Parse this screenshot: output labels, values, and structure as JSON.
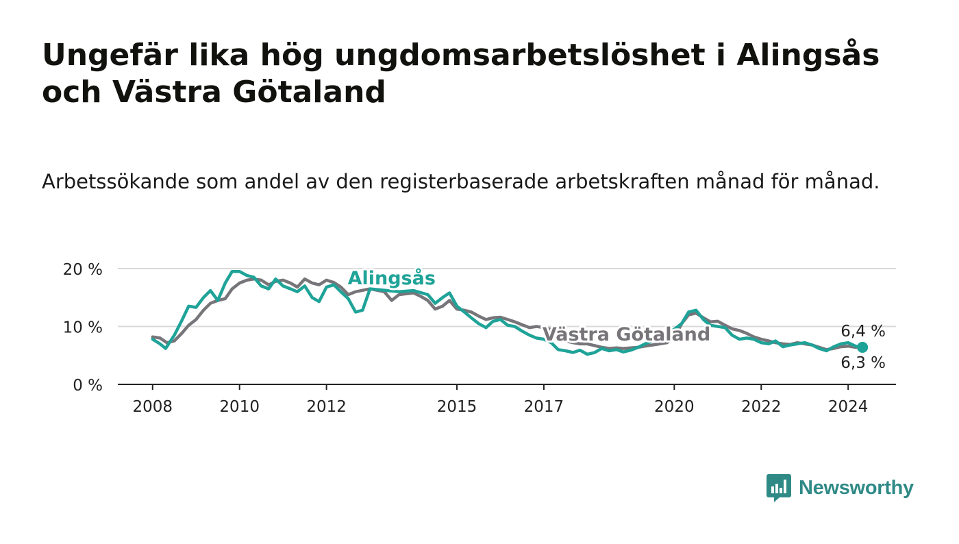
{
  "title": "Ungefär lika hög ungdomsarbetslöshet i Alingsås och Västra Götaland",
  "subtitle": "Arbetssökande som andel av den registerbaserade arbetskraften månad för månad.",
  "brand": {
    "name": "Newsworthy",
    "color": "#2f8a86"
  },
  "colors": {
    "alingsas": "#1fa398",
    "vastra": "#77757a",
    "grid": "#d9d9d9",
    "axis": "#222222"
  },
  "chart_data": {
    "type": "line",
    "title": "Ungefär lika hög ungdomsarbetslöshet i Alingsås och Västra Götaland",
    "xlabel": "",
    "ylabel": "",
    "ylim": [
      0,
      20
    ],
    "xlim": [
      2007.2,
      2025.1
    ],
    "yticks": [
      {
        "value": 0,
        "label": "0 %"
      },
      {
        "value": 10,
        "label": "10 %"
      },
      {
        "value": 20,
        "label": "20 %"
      }
    ],
    "xticks": [
      {
        "value": 2008,
        "label": "2008"
      },
      {
        "value": 2010,
        "label": "2010"
      },
      {
        "value": 2012,
        "label": "2012"
      },
      {
        "value": 2015,
        "label": "2015"
      },
      {
        "value": 2017,
        "label": "2017"
      },
      {
        "value": 2020,
        "label": "2020"
      },
      {
        "value": 2022,
        "label": "2022"
      },
      {
        "value": 2024,
        "label": "2024"
      }
    ],
    "grid": true,
    "series": [
      {
        "name": "Västra Götaland",
        "label": "Västra Götaland",
        "last_value_label": "6,3 %",
        "points": [
          [
            2008.0,
            8.2
          ],
          [
            2008.17,
            8.0
          ],
          [
            2008.33,
            7.2
          ],
          [
            2008.5,
            7.5
          ],
          [
            2008.67,
            8.8
          ],
          [
            2008.83,
            10.2
          ],
          [
            2009.0,
            11.2
          ],
          [
            2009.17,
            12.8
          ],
          [
            2009.33,
            14.0
          ],
          [
            2009.5,
            14.5
          ],
          [
            2009.67,
            14.8
          ],
          [
            2009.83,
            16.5
          ],
          [
            2010.0,
            17.5
          ],
          [
            2010.17,
            18.0
          ],
          [
            2010.33,
            18.2
          ],
          [
            2010.5,
            18.0
          ],
          [
            2010.67,
            17.2
          ],
          [
            2010.83,
            17.8
          ],
          [
            2011.0,
            18.0
          ],
          [
            2011.17,
            17.5
          ],
          [
            2011.33,
            16.8
          ],
          [
            2011.5,
            18.2
          ],
          [
            2011.67,
            17.5
          ],
          [
            2011.83,
            17.2
          ],
          [
            2012.0,
            18.0
          ],
          [
            2012.17,
            17.6
          ],
          [
            2012.33,
            16.8
          ],
          [
            2012.5,
            15.5
          ],
          [
            2012.67,
            16.0
          ],
          [
            2013.0,
            16.5
          ],
          [
            2013.33,
            16.0
          ],
          [
            2013.5,
            14.5
          ],
          [
            2013.67,
            15.5
          ],
          [
            2014.0,
            15.8
          ],
          [
            2014.17,
            15.2
          ],
          [
            2014.33,
            14.5
          ],
          [
            2014.5,
            13.0
          ],
          [
            2014.67,
            13.5
          ],
          [
            2014.83,
            14.5
          ],
          [
            2015.0,
            13.0
          ],
          [
            2015.17,
            12.8
          ],
          [
            2015.33,
            12.5
          ],
          [
            2015.5,
            11.8
          ],
          [
            2015.67,
            11.2
          ],
          [
            2015.83,
            11.5
          ],
          [
            2016.0,
            11.6
          ],
          [
            2016.17,
            11.2
          ],
          [
            2016.33,
            10.8
          ],
          [
            2016.5,
            10.3
          ],
          [
            2016.67,
            9.8
          ],
          [
            2016.83,
            10.0
          ],
          [
            2017.0,
            9.8
          ],
          [
            2017.17,
            9.5
          ],
          [
            2017.33,
            8.2
          ],
          [
            2017.5,
            7.5
          ],
          [
            2017.67,
            7.2
          ],
          [
            2017.83,
            7.0
          ],
          [
            2018.0,
            7.0
          ],
          [
            2018.17,
            6.7
          ],
          [
            2018.33,
            6.4
          ],
          [
            2018.5,
            6.2
          ],
          [
            2018.67,
            6.3
          ],
          [
            2018.83,
            6.2
          ],
          [
            2019.0,
            6.3
          ],
          [
            2019.17,
            6.4
          ],
          [
            2019.33,
            6.6
          ],
          [
            2019.5,
            6.8
          ],
          [
            2019.67,
            7.0
          ],
          [
            2019.83,
            7.2
          ],
          [
            2020.0,
            8.0
          ],
          [
            2020.17,
            10.5
          ],
          [
            2020.33,
            12.0
          ],
          [
            2020.5,
            12.3
          ],
          [
            2020.67,
            11.5
          ],
          [
            2020.83,
            10.8
          ],
          [
            2021.0,
            10.9
          ],
          [
            2021.17,
            10.2
          ],
          [
            2021.33,
            9.6
          ],
          [
            2021.5,
            9.3
          ],
          [
            2021.67,
            8.8
          ],
          [
            2021.83,
            8.2
          ],
          [
            2022.0,
            7.8
          ],
          [
            2022.17,
            7.5
          ],
          [
            2022.33,
            7.2
          ],
          [
            2022.5,
            7.0
          ],
          [
            2022.67,
            6.9
          ],
          [
            2022.83,
            7.2
          ],
          [
            2023.0,
            7.0
          ],
          [
            2023.17,
            6.8
          ],
          [
            2023.33,
            6.4
          ],
          [
            2023.5,
            6.0
          ],
          [
            2023.67,
            6.2
          ],
          [
            2023.83,
            6.5
          ],
          [
            2024.0,
            6.6
          ],
          [
            2024.17,
            6.4
          ],
          [
            2024.33,
            6.3
          ]
        ]
      },
      {
        "name": "Alingsås",
        "label": "Alingsås",
        "last_value_label": "6,4 %",
        "points": [
          [
            2008.0,
            7.8
          ],
          [
            2008.17,
            7.0
          ],
          [
            2008.3,
            6.2
          ],
          [
            2008.5,
            8.5
          ],
          [
            2008.67,
            11.0
          ],
          [
            2008.83,
            13.5
          ],
          [
            2009.0,
            13.3
          ],
          [
            2009.17,
            15.0
          ],
          [
            2009.33,
            16.2
          ],
          [
            2009.5,
            14.5
          ],
          [
            2009.67,
            17.5
          ],
          [
            2009.83,
            19.5
          ],
          [
            2010.0,
            19.5
          ],
          [
            2010.17,
            18.8
          ],
          [
            2010.33,
            18.5
          ],
          [
            2010.5,
            17.0
          ],
          [
            2010.67,
            16.5
          ],
          [
            2010.83,
            18.2
          ],
          [
            2011.0,
            17.0
          ],
          [
            2011.17,
            16.5
          ],
          [
            2011.33,
            16.0
          ],
          [
            2011.5,
            17.0
          ],
          [
            2011.67,
            15.0
          ],
          [
            2011.83,
            14.3
          ],
          [
            2012.0,
            16.8
          ],
          [
            2012.17,
            17.2
          ],
          [
            2012.33,
            16.0
          ],
          [
            2012.5,
            14.8
          ],
          [
            2012.67,
            12.5
          ],
          [
            2012.83,
            12.8
          ],
          [
            2013.0,
            16.5
          ],
          [
            2013.67,
            16.0
          ],
          [
            2014.0,
            16.2
          ],
          [
            2014.33,
            15.5
          ],
          [
            2014.5,
            14.0
          ],
          [
            2014.67,
            15.0
          ],
          [
            2014.83,
            15.8
          ],
          [
            2015.0,
            13.5
          ],
          [
            2015.17,
            12.5
          ],
          [
            2015.33,
            11.5
          ],
          [
            2015.5,
            10.5
          ],
          [
            2015.67,
            9.8
          ],
          [
            2015.83,
            10.9
          ],
          [
            2016.0,
            11.2
          ],
          [
            2016.17,
            10.2
          ],
          [
            2016.33,
            10.0
          ],
          [
            2016.5,
            9.2
          ],
          [
            2016.67,
            8.5
          ],
          [
            2016.83,
            8.0
          ],
          [
            2017.0,
            7.8
          ],
          [
            2017.17,
            7.2
          ],
          [
            2017.33,
            6.0
          ],
          [
            2017.5,
            5.8
          ],
          [
            2017.67,
            5.5
          ],
          [
            2017.83,
            5.9
          ],
          [
            2018.0,
            5.2
          ],
          [
            2018.17,
            5.5
          ],
          [
            2018.33,
            6.2
          ],
          [
            2018.5,
            5.8
          ],
          [
            2018.67,
            6.0
          ],
          [
            2018.83,
            5.6
          ],
          [
            2019.0,
            5.9
          ],
          [
            2019.17,
            6.4
          ],
          [
            2019.33,
            7.0
          ],
          [
            2019.5,
            7.5
          ],
          [
            2019.67,
            8.0
          ],
          [
            2019.83,
            8.8
          ],
          [
            2020.0,
            9.5
          ],
          [
            2020.17,
            10.5
          ],
          [
            2020.33,
            12.5
          ],
          [
            2020.5,
            12.8
          ],
          [
            2020.67,
            11.2
          ],
          [
            2020.83,
            10.2
          ],
          [
            2021.0,
            10.0
          ],
          [
            2021.17,
            9.8
          ],
          [
            2021.33,
            8.5
          ],
          [
            2021.5,
            7.8
          ],
          [
            2021.67,
            8.0
          ],
          [
            2021.83,
            7.8
          ],
          [
            2022.0,
            7.2
          ],
          [
            2022.17,
            7.0
          ],
          [
            2022.33,
            7.5
          ],
          [
            2022.5,
            6.5
          ],
          [
            2022.67,
            6.8
          ],
          [
            2022.83,
            7.0
          ],
          [
            2023.0,
            7.2
          ],
          [
            2023.17,
            6.8
          ],
          [
            2023.33,
            6.2
          ],
          [
            2023.5,
            5.8
          ],
          [
            2023.67,
            6.5
          ],
          [
            2023.83,
            7.0
          ],
          [
            2024.0,
            7.2
          ],
          [
            2024.17,
            6.6
          ],
          [
            2024.33,
            6.4
          ]
        ]
      }
    ],
    "series_labels": [
      {
        "series": "Alingsås",
        "text": "Alingsås",
        "x": 2013.5,
        "y": 17.3
      },
      {
        "series": "Västra Götaland",
        "text": "Västra Götaland",
        "x": 2018.9,
        "y": 7.6
      }
    ]
  }
}
